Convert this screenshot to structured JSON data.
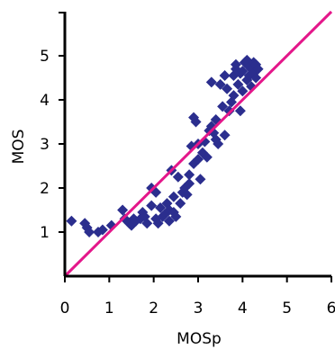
{
  "chart_data": {
    "type": "scatter",
    "title": "",
    "xlabel": "MOSp",
    "ylabel": "MOS",
    "xlim": [
      0,
      6
    ],
    "ylim": [
      0,
      6
    ],
    "xticks": [
      "0",
      "1",
      "2",
      "3",
      "4",
      "5",
      "6"
    ],
    "yticks": [
      "1",
      "2",
      "3",
      "4",
      "5"
    ],
    "grid": false,
    "legend": "none",
    "marker": "diamond",
    "colors": {
      "points": "#2B2E8E",
      "reference_line": "#E4178A",
      "axes": "#000000"
    },
    "reference_line": {
      "type": "identity",
      "from": [
        0,
        0
      ],
      "to": [
        6,
        6
      ]
    },
    "points": [
      [
        0.15,
        1.25
      ],
      [
        0.45,
        1.2
      ],
      [
        0.5,
        1.1
      ],
      [
        0.55,
        1.0
      ],
      [
        0.75,
        1.0
      ],
      [
        0.85,
        1.05
      ],
      [
        1.05,
        1.15
      ],
      [
        1.3,
        1.5
      ],
      [
        1.35,
        1.3
      ],
      [
        1.45,
        1.2
      ],
      [
        1.5,
        1.15
      ],
      [
        1.55,
        1.3
      ],
      [
        1.6,
        1.25
      ],
      [
        1.7,
        1.3
      ],
      [
        1.75,
        1.45
      ],
      [
        1.8,
        1.35
      ],
      [
        1.85,
        1.2
      ],
      [
        1.95,
        1.6
      ],
      [
        1.95,
        2.0
      ],
      [
        2.05,
        1.9
      ],
      [
        2.05,
        1.3
      ],
      [
        2.1,
        1.2
      ],
      [
        2.15,
        1.55
      ],
      [
        2.2,
        1.35
      ],
      [
        2.25,
        1.4
      ],
      [
        2.3,
        1.65
      ],
      [
        2.35,
        1.5
      ],
      [
        2.35,
        1.25
      ],
      [
        2.4,
        2.4
      ],
      [
        2.45,
        1.8
      ],
      [
        2.45,
        1.45
      ],
      [
        2.5,
        1.35
      ],
      [
        2.55,
        2.25
      ],
      [
        2.6,
        1.65
      ],
      [
        2.65,
        1.9
      ],
      [
        2.7,
        2.0
      ],
      [
        2.75,
        1.85
      ],
      [
        2.8,
        2.1
      ],
      [
        2.8,
        2.3
      ],
      [
        2.85,
        2.95
      ],
      [
        2.9,
        3.6
      ],
      [
        2.9,
        2.55
      ],
      [
        2.95,
        3.5
      ],
      [
        3.0,
        2.65
      ],
      [
        3.0,
        3.0
      ],
      [
        3.05,
        2.2
      ],
      [
        3.1,
        2.8
      ],
      [
        3.15,
        3.05
      ],
      [
        3.2,
        2.7
      ],
      [
        3.25,
        3.3
      ],
      [
        3.3,
        3.4
      ],
      [
        3.3,
        4.4
      ],
      [
        3.35,
        3.25
      ],
      [
        3.4,
        3.1
      ],
      [
        3.4,
        3.55
      ],
      [
        3.45,
        3.0
      ],
      [
        3.5,
        4.35
      ],
      [
        3.55,
        3.85
      ],
      [
        3.6,
        4.55
      ],
      [
        3.6,
        3.2
      ],
      [
        3.65,
        4.25
      ],
      [
        3.7,
        3.75
      ],
      [
        3.75,
        3.95
      ],
      [
        3.8,
        4.1
      ],
      [
        3.8,
        4.55
      ],
      [
        3.85,
        4.7
      ],
      [
        3.85,
        4.8
      ],
      [
        3.9,
        4.35
      ],
      [
        3.95,
        3.75
      ],
      [
        3.95,
        4.6
      ],
      [
        4.0,
        4.2
      ],
      [
        4.0,
        4.65
      ],
      [
        4.05,
        4.85
      ],
      [
        4.1,
        4.45
      ],
      [
        4.1,
        4.9
      ],
      [
        4.15,
        4.75
      ],
      [
        4.15,
        4.55
      ],
      [
        4.2,
        4.7
      ],
      [
        4.2,
        4.3
      ],
      [
        4.25,
        4.85
      ],
      [
        4.25,
        4.6
      ],
      [
        4.3,
        4.5
      ],
      [
        4.3,
        4.8
      ],
      [
        4.35,
        4.7
      ]
    ]
  }
}
